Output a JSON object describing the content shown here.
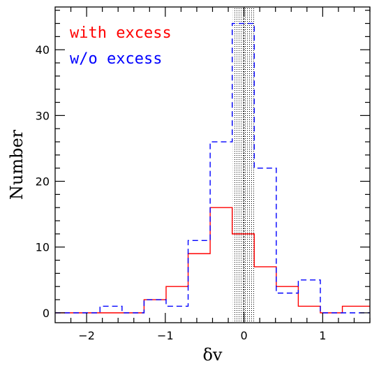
{
  "chart_data": {
    "type": "histogram",
    "xlabel": "δv",
    "ylabel": "Number",
    "xlim": [
      -2.4,
      1.6
    ],
    "ylim": [
      -1.5,
      46.5
    ],
    "xticks": [
      -2,
      -1,
      0,
      1
    ],
    "xtick_labels": [
      "−2",
      "−1",
      "0",
      "1"
    ],
    "yticks": [
      0,
      10,
      20,
      30,
      40
    ],
    "ytick_labels": [
      "0",
      "10",
      "20",
      "30",
      "40"
    ],
    "shaded_band": [
      -0.14,
      0.14
    ],
    "center_line": 0,
    "bin_edges": [
      -2.4,
      -1.83,
      -1.55,
      -1.27,
      -0.99,
      -0.71,
      -0.43,
      -0.15,
      0.13,
      0.41,
      0.69,
      0.97,
      1.25,
      1.53,
      1.6
    ],
    "series": [
      {
        "name": "with excess",
        "color": "#ff0000",
        "style": "solid",
        "values": [
          0,
          0,
          0,
          2,
          4,
          9,
          16,
          12,
          7,
          4,
          1,
          0,
          1,
          1
        ]
      },
      {
        "name": "w/o excess",
        "color": "#0000ff",
        "style": "dashed",
        "values": [
          0,
          1,
          0,
          2,
          1,
          11,
          26,
          44,
          22,
          3,
          5,
          0,
          0,
          0
        ]
      }
    ],
    "legend_position": "top-left"
  }
}
